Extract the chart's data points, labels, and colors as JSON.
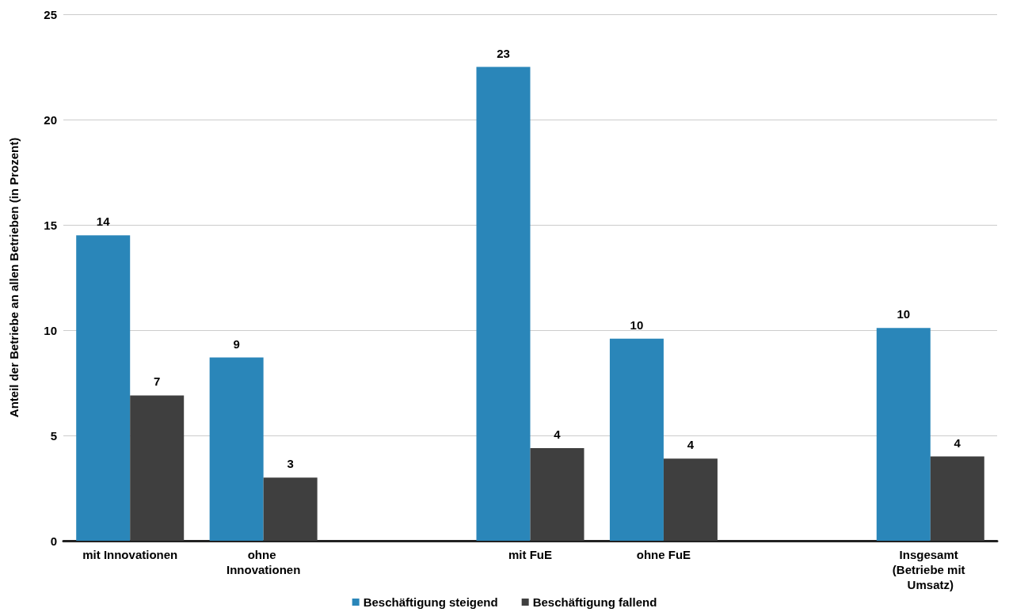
{
  "chart_data": {
    "type": "bar",
    "ylabel": "Anteil der Betriebe an allen Betrieben (in Prozent)",
    "categories": [
      "mit Innovationen",
      "ohne Innovationen",
      null,
      "mit FuE",
      "ohne FuE",
      null,
      "Insgesamt (Betriebe mit Umsatz)"
    ],
    "series": [
      {
        "name": "Beschäftigung steigend",
        "color": "#2a86b9",
        "values": [
          14.5,
          8.7,
          null,
          22.5,
          9.6,
          null,
          10.1
        ],
        "value_labels": [
          "14",
          "9",
          null,
          "23",
          "10",
          null,
          "10"
        ]
      },
      {
        "name": "Beschäftigung fallend",
        "color": "#3f3f3f",
        "values": [
          6.9,
          3.0,
          null,
          4.4,
          3.9,
          null,
          4.0
        ],
        "value_labels": [
          "7",
          "3",
          null,
          "4",
          "4",
          null,
          "4"
        ]
      }
    ],
    "ylim": [
      0,
      25
    ],
    "yticks": [
      0,
      5,
      10,
      15,
      20,
      25
    ],
    "grid": "y",
    "legend": "bottom"
  }
}
